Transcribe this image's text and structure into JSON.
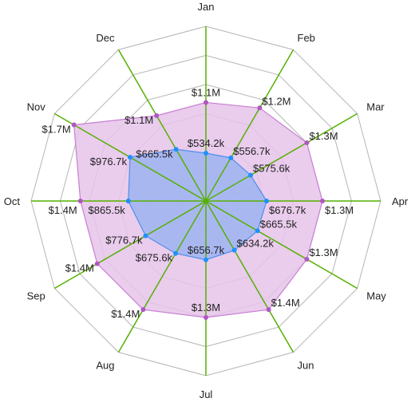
{
  "chart_data": {
    "type": "radar",
    "categories": [
      "Jan",
      "Feb",
      "Mar",
      "Apr",
      "May",
      "Jun",
      "Jul",
      "Aug",
      "Sep",
      "Oct",
      "Nov",
      "Dec"
    ],
    "rmax": 1950000,
    "grid_levels": 6,
    "series": [
      {
        "values": [
          1100000,
          1200000,
          1300000,
          1300000,
          1300000,
          1400000,
          1300000,
          1400000,
          1400000,
          1400000,
          1700000,
          1100000
        ],
        "labels": [
          "$1.1M",
          "$1.2M",
          "$1.3M",
          "$1.3M",
          "$1.3M",
          "$1.4M",
          "$1.3M",
          "$1.4M",
          "$1.4M",
          "$1.4M",
          "$1.7M",
          "$1.1M"
        ],
        "fill": "#e6c3ea",
        "stroke": "#c77fd2",
        "point": "#b057c2"
      },
      {
        "values": [
          534200,
          556700,
          575600,
          676700,
          665500,
          634200,
          656700,
          675600,
          776700,
          865500,
          976700,
          665500
        ],
        "labels": [
          "$534.2k",
          "$556.7k",
          "$575.6k",
          "$676.7k",
          "$665.5k",
          "$634.2k",
          "$656.7k",
          "$675.6k",
          "$776.7k",
          "$865.5k",
          "$976.7k",
          "$665.5k"
        ],
        "fill": "#9db3f1",
        "stroke": "#4f8fe8",
        "point": "#1e90ff"
      }
    ],
    "colors": {
      "grid": "#b5b5b5",
      "axis": "#55b000"
    }
  }
}
